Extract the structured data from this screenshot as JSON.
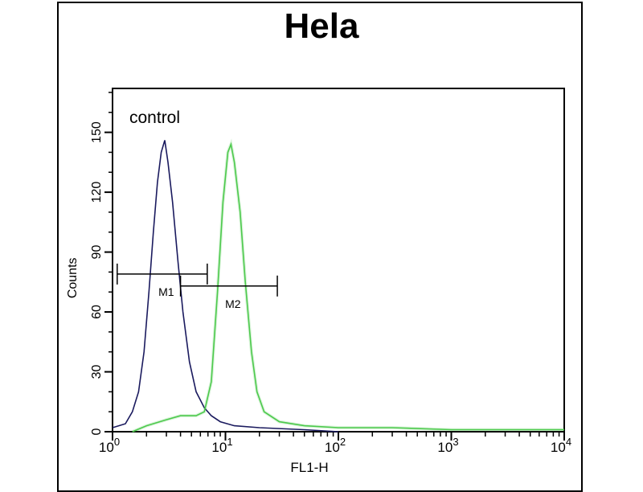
{
  "chart_data": {
    "type": "line",
    "title": "Hela",
    "xlabel": "FL1-H",
    "ylabel": "Counts",
    "xscale": "log",
    "xlim": [
      1,
      10000
    ],
    "ylim": [
      0,
      172
    ],
    "xticks": [
      1,
      10,
      100,
      1000,
      10000
    ],
    "xtick_labels": [
      {
        "base": "10",
        "exp": "0"
      },
      {
        "base": "10",
        "exp": "1"
      },
      {
        "base": "10",
        "exp": "2"
      },
      {
        "base": "10",
        "exp": "3"
      },
      {
        "base": "10",
        "exp": "4"
      }
    ],
    "yticks": [
      0,
      30,
      60,
      90,
      120,
      150
    ],
    "ytick_labels": [
      "0",
      "30",
      "60",
      "90",
      "120",
      "150"
    ],
    "grid": false,
    "annotation": "control",
    "series": [
      {
        "color": "#1a1a5e",
        "points": [
          [
            1.0,
            2
          ],
          [
            1.3,
            4
          ],
          [
            1.5,
            10
          ],
          [
            1.7,
            20
          ],
          [
            1.9,
            40
          ],
          [
            2.1,
            70
          ],
          [
            2.3,
            100
          ],
          [
            2.5,
            125
          ],
          [
            2.7,
            140
          ],
          [
            2.9,
            146
          ],
          [
            3.1,
            135
          ],
          [
            3.4,
            115
          ],
          [
            3.8,
            85
          ],
          [
            4.2,
            60
          ],
          [
            4.8,
            35
          ],
          [
            5.5,
            20
          ],
          [
            6.5,
            12
          ],
          [
            7.5,
            8
          ],
          [
            9,
            5
          ],
          [
            12,
            3
          ],
          [
            20,
            2
          ],
          [
            50,
            1
          ],
          [
            100,
            0
          ]
        ]
      },
      {
        "color": "#4cc94c",
        "points": [
          [
            1.5,
            0
          ],
          [
            2,
            3
          ],
          [
            3,
            6
          ],
          [
            4,
            8
          ],
          [
            5.5,
            8
          ],
          [
            6.5,
            10
          ],
          [
            7.5,
            25
          ],
          [
            8.5,
            70
          ],
          [
            9.5,
            115
          ],
          [
            10.5,
            140
          ],
          [
            11.2,
            144
          ],
          [
            12,
            135
          ],
          [
            13.5,
            110
          ],
          [
            15,
            75
          ],
          [
            17,
            40
          ],
          [
            19,
            20
          ],
          [
            22,
            10
          ],
          [
            30,
            5
          ],
          [
            50,
            3
          ],
          [
            100,
            2
          ],
          [
            300,
            2
          ],
          [
            1000,
            1
          ],
          [
            10000,
            1
          ]
        ]
      }
    ],
    "markers": [
      {
        "label": "M1",
        "x_range": [
          1.1,
          6.9
        ],
        "y": 79
      },
      {
        "label": "M2",
        "x_range": [
          4.0,
          28.8
        ],
        "y": 73
      }
    ]
  }
}
